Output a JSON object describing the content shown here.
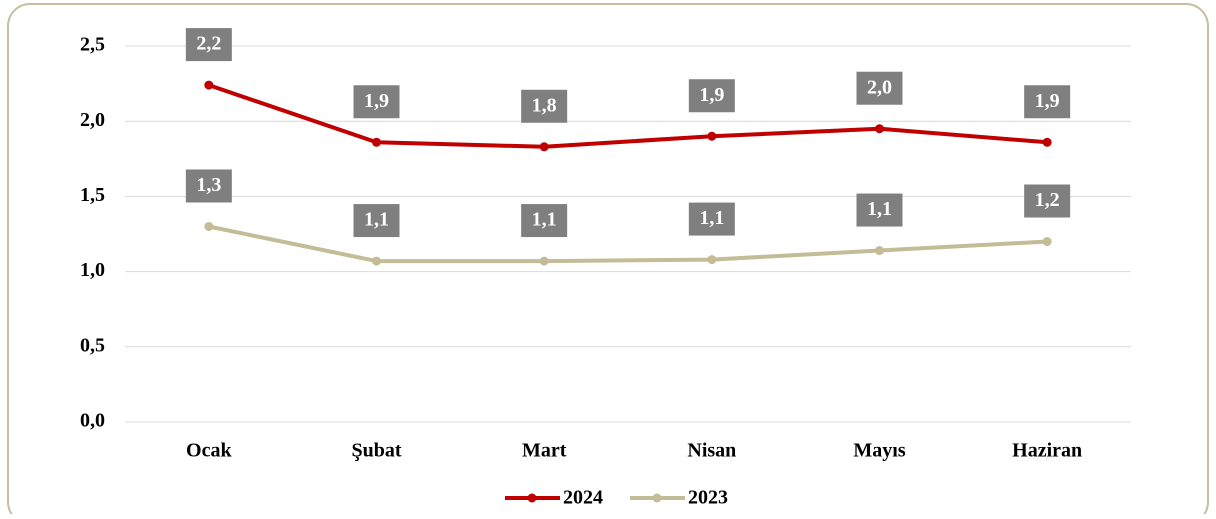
{
  "chart_data": {
    "type": "line",
    "categories": [
      "Ocak",
      "Şubat",
      "Mart",
      "Nisan",
      "Mayıs",
      "Haziran"
    ],
    "series": [
      {
        "name": "2024",
        "color": "#c00000",
        "values": [
          2.24,
          1.86,
          1.83,
          1.9,
          1.95,
          1.86
        ],
        "value_labels": [
          "2,2",
          "1,9",
          "1,8",
          "1,9",
          "2,0",
          "1,9"
        ]
      },
      {
        "name": "2023",
        "color": "#c4bc96",
        "values": [
          1.3,
          1.07,
          1.07,
          1.08,
          1.14,
          1.2
        ],
        "value_labels": [
          "1,3",
          "1,1",
          "1,1",
          "1,1",
          "1,1",
          "1,2"
        ]
      }
    ],
    "ylim": [
      0,
      2.5
    ],
    "yticks": [
      {
        "value": 0,
        "label": "0,0"
      },
      {
        "value": 0.5,
        "label": "0,5"
      },
      {
        "value": 1,
        "label": "1,0"
      },
      {
        "value": 1.5,
        "label": "1,5"
      },
      {
        "value": 2,
        "label": "2,0"
      },
      {
        "value": 2.5,
        "label": "2,5"
      }
    ],
    "grid": true,
    "legend": "bottom"
  }
}
